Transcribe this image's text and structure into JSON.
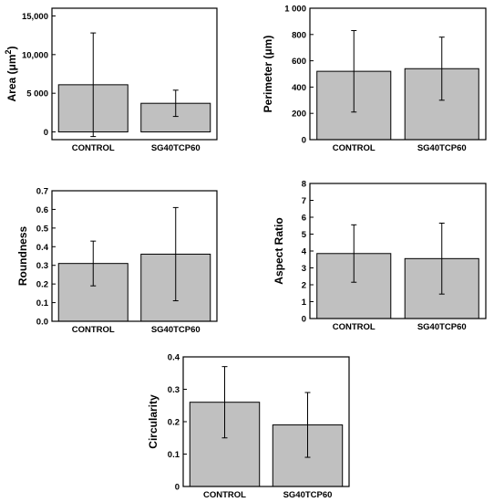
{
  "chart_data": [
    {
      "type": "bar",
      "categories": [
        "CONTROL",
        "SG40TCP60"
      ],
      "values": [
        6100,
        3700
      ],
      "errors": [
        6700,
        1700
      ],
      "ylabel": "Area (μm",
      "ylabel_sup": "2",
      "ylabel_close": ")",
      "ylim": [
        -1000,
        16000
      ],
      "ticks": [
        0,
        5000,
        10000,
        15000
      ],
      "tick_labels": [
        "0",
        "5 000",
        "10,000",
        "15,000"
      ],
      "bar_color": "#c0c0c0"
    },
    {
      "type": "bar",
      "categories": [
        "CONTROL",
        "SG40TCP60"
      ],
      "values": [
        520,
        540
      ],
      "errors": [
        310,
        240
      ],
      "ylabel": "Perimeter (μm)",
      "ylim": [
        0,
        1000
      ],
      "ticks": [
        0,
        200,
        400,
        600,
        800,
        1000
      ],
      "tick_labels": [
        "0",
        "200",
        "400",
        "600",
        "800",
        "1 000"
      ],
      "bar_color": "#c0c0c0"
    },
    {
      "type": "bar",
      "categories": [
        "CONTROL",
        "SG40TCP60"
      ],
      "values": [
        0.31,
        0.36
      ],
      "errors": [
        0.12,
        0.25
      ],
      "ylabel": "Roundness",
      "ylim": [
        0,
        0.7
      ],
      "ticks": [
        0,
        0.1,
        0.2,
        0.3,
        0.4,
        0.5,
        0.6,
        0.7
      ],
      "tick_labels": [
        "0.0",
        "0.1",
        "0.2",
        "0.3",
        "0.4",
        "0.5",
        "0.6",
        "0.7"
      ],
      "bar_color": "#c0c0c0"
    },
    {
      "type": "bar",
      "categories": [
        "CONTROL",
        "SG40TCP60"
      ],
      "values": [
        3.85,
        3.55
      ],
      "errors": [
        1.7,
        2.1
      ],
      "ylabel": "Aspect Ratio",
      "ylim": [
        0,
        8
      ],
      "ticks": [
        0,
        1,
        2,
        3,
        4,
        5,
        6,
        7,
        8
      ],
      "tick_labels": [
        "0",
        "1",
        "2",
        "3",
        "4",
        "5",
        "6",
        "7",
        "8"
      ],
      "bar_color": "#c0c0c0"
    },
    {
      "type": "bar",
      "categories": [
        "CONTROL",
        "SG40TCP60"
      ],
      "values": [
        0.26,
        0.19
      ],
      "errors": [
        0.11,
        0.1
      ],
      "ylabel": "Circularity",
      "ylim": [
        0,
        0.4
      ],
      "ticks": [
        0,
        0.1,
        0.2,
        0.3,
        0.4
      ],
      "tick_labels": [
        "0",
        "0.1",
        "0.2",
        "0.3",
        "0.4"
      ],
      "bar_color": "#c0c0c0"
    }
  ]
}
